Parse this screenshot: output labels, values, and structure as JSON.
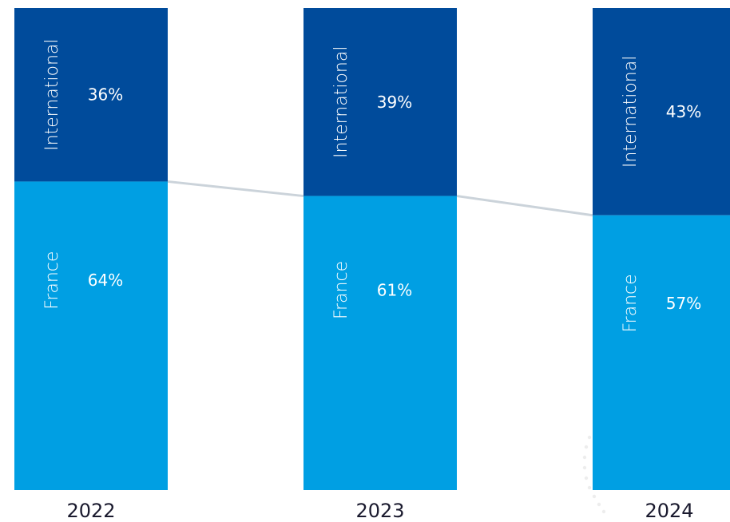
{
  "chart_data": {
    "type": "bar",
    "stacked": true,
    "categories": [
      "2022",
      "2023",
      "2024"
    ],
    "series": [
      {
        "name": "France",
        "values": [
          64,
          61,
          57
        ],
        "labels": [
          "64%",
          "61%",
          "57%"
        ],
        "color": "#009fe3"
      },
      {
        "name": "International",
        "values": [
          36,
          39,
          43
        ],
        "labels": [
          "36%",
          "39%",
          "43%"
        ],
        "color": "#004b9b"
      }
    ],
    "ylim": [
      0,
      100
    ],
    "grid": false,
    "connector_color": "#cbd3da"
  }
}
